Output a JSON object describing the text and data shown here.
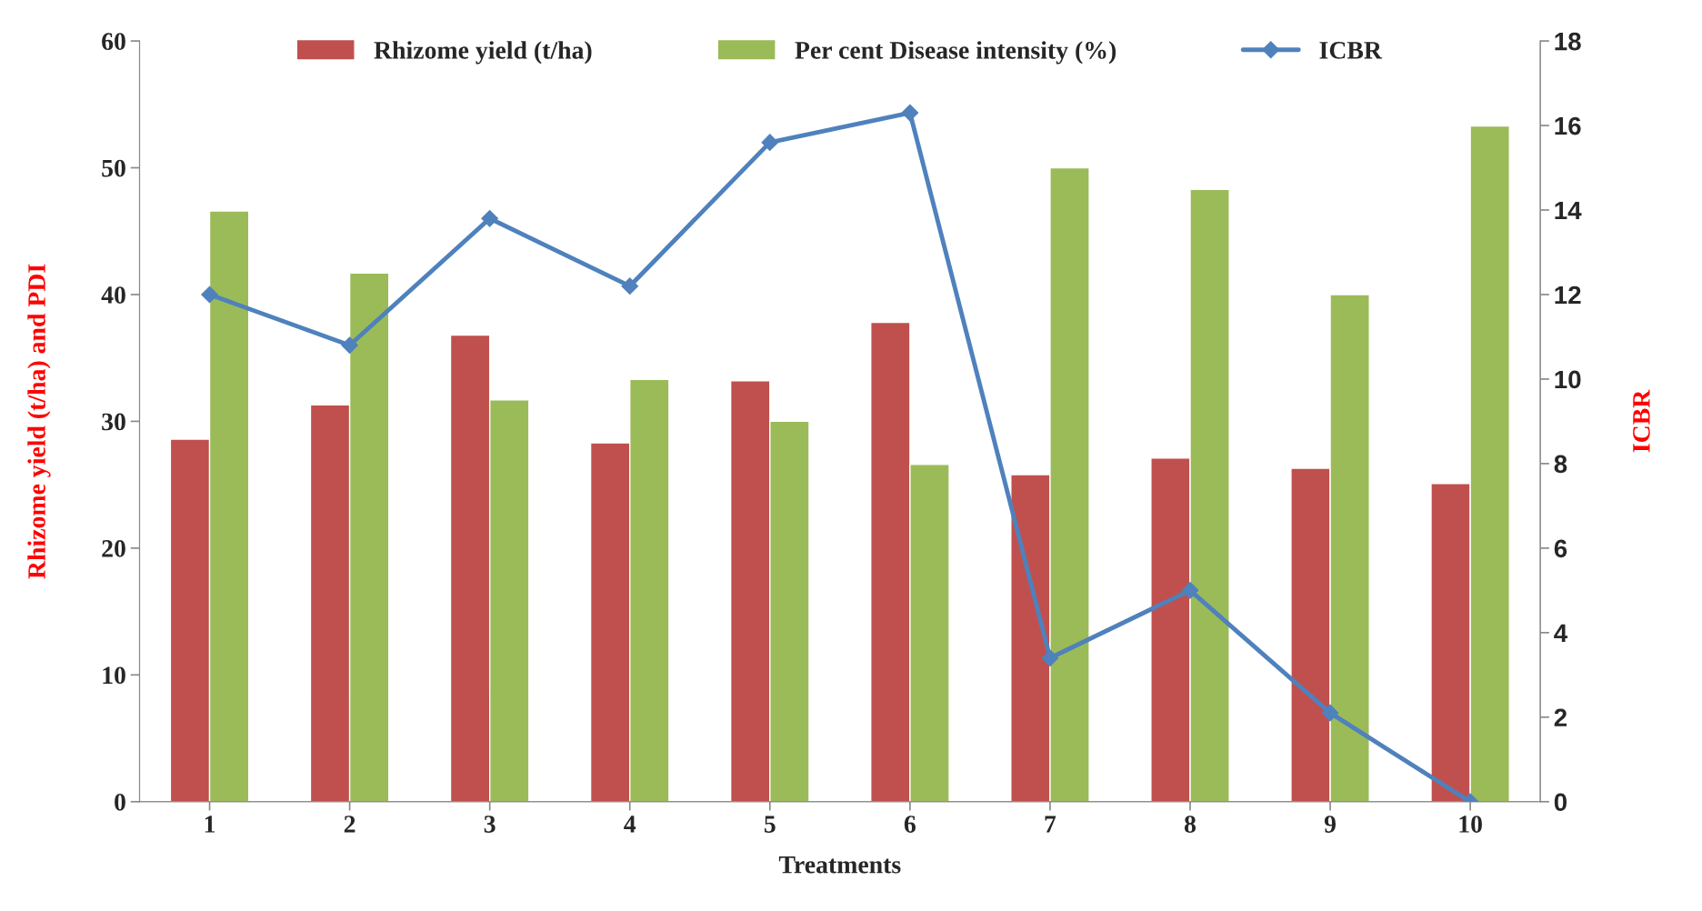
{
  "chart_data": {
    "type": "bar",
    "xlabel": "Treatments",
    "ylabel": "Rhizome yield (t/ha) and PDI",
    "y2label": "ICBR",
    "categories": [
      "1",
      "2",
      "3",
      "4",
      "5",
      "6",
      "7",
      "8",
      "9",
      "10"
    ],
    "series": [
      {
        "name": "Rhizome yield (t/ha)",
        "color": "#c0504d",
        "values": [
          28.6,
          31.3,
          36.8,
          28.3,
          33.2,
          37.8,
          25.8,
          27.1,
          26.3,
          25.1
        ]
      },
      {
        "name": "Per cent Disease intensity (%)",
        "color": "#9bbb59",
        "values": [
          46.6,
          41.7,
          31.7,
          33.3,
          30.0,
          26.6,
          50.0,
          48.3,
          40.0,
          53.3
        ]
      },
      {
        "name": "ICBR",
        "type": "line",
        "axis": "y2",
        "color": "#4f81bd",
        "marker": "diamond",
        "values": [
          12.0,
          10.8,
          13.8,
          12.2,
          15.6,
          16.3,
          3.4,
          5.0,
          2.1,
          0
        ]
      }
    ],
    "ylim": [
      0,
      60
    ],
    "yticks": [
      0,
      10,
      20,
      30,
      40,
      50,
      60
    ],
    "y2lim": [
      0,
      18
    ],
    "y2ticks": [
      0,
      2,
      4,
      6,
      8,
      10,
      12,
      14,
      16,
      18
    ],
    "legend": "top",
    "grid": false
  }
}
